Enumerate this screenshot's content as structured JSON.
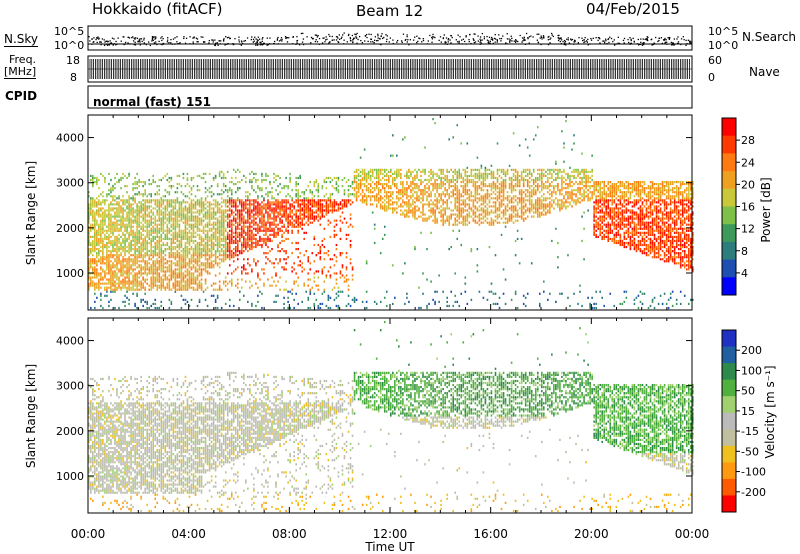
{
  "header": {
    "radar": "Hokkaido (fitACF)",
    "beam": "Beam 12",
    "date": "04/Feb/2015"
  },
  "sidepanels": {
    "nsky_label": "N.Sky",
    "nsearch_label": "N.Search",
    "freq_label": "Freq.",
    "freq_unit": "[MHz]",
    "nave_label": "Nave",
    "cpid_label": "CPID",
    "cpid_value": "normal (fast) 151",
    "noise_left_ticks": [
      "10^5",
      "10^0"
    ],
    "noise_right_ticks": [
      "10^5",
      "10^0"
    ],
    "freq_ticks": [
      "18",
      "8"
    ],
    "nave_ticks": [
      "60",
      "0"
    ]
  },
  "colors": {
    "power_scale": [
      "#0000ff",
      "#1f4fb0",
      "#2e7d7d",
      "#3e9a5a",
      "#7dc04a",
      "#c8c83a",
      "#f0a020",
      "#ff7a10",
      "#ff3a00",
      "#ff0000"
    ],
    "velocity_scale": [
      "#2030c0",
      "#2060a0",
      "#2e8a4a",
      "#50b040",
      "#a0d070",
      "#bbbbbb",
      "#c0c0a0",
      "#f0c020",
      "#ff9a10",
      "#ff5a00",
      "#ff0000"
    ]
  },
  "chart_data": [
    {
      "type": "heatmap",
      "name": "power",
      "xlabel": "",
      "ylabel": "Slant Range [km]",
      "ylim": [
        180,
        4500
      ],
      "yticks": [
        "1000",
        "2000",
        "3000",
        "4000"
      ],
      "colorbar": {
        "label": "Power [dB]",
        "ticks": [
          "4",
          "8",
          "12",
          "16",
          "20",
          "24",
          "28"
        ],
        "range": [
          0,
          32
        ]
      }
    },
    {
      "type": "heatmap",
      "name": "velocity",
      "xlabel": "Time UT",
      "ylabel": "Slant Range [km]",
      "ylim": [
        180,
        4500
      ],
      "yticks": [
        "1000",
        "2000",
        "3000",
        "4000"
      ],
      "xticks": [
        "00:00",
        "04:00",
        "08:00",
        "12:00",
        "16:00",
        "20:00",
        "00:00"
      ],
      "colorbar": {
        "label": "Velocity [m s⁻¹]",
        "ticks": [
          "200",
          "100",
          "50",
          "15",
          "-15",
          "-50",
          "-100",
          "-200"
        ]
      }
    }
  ]
}
